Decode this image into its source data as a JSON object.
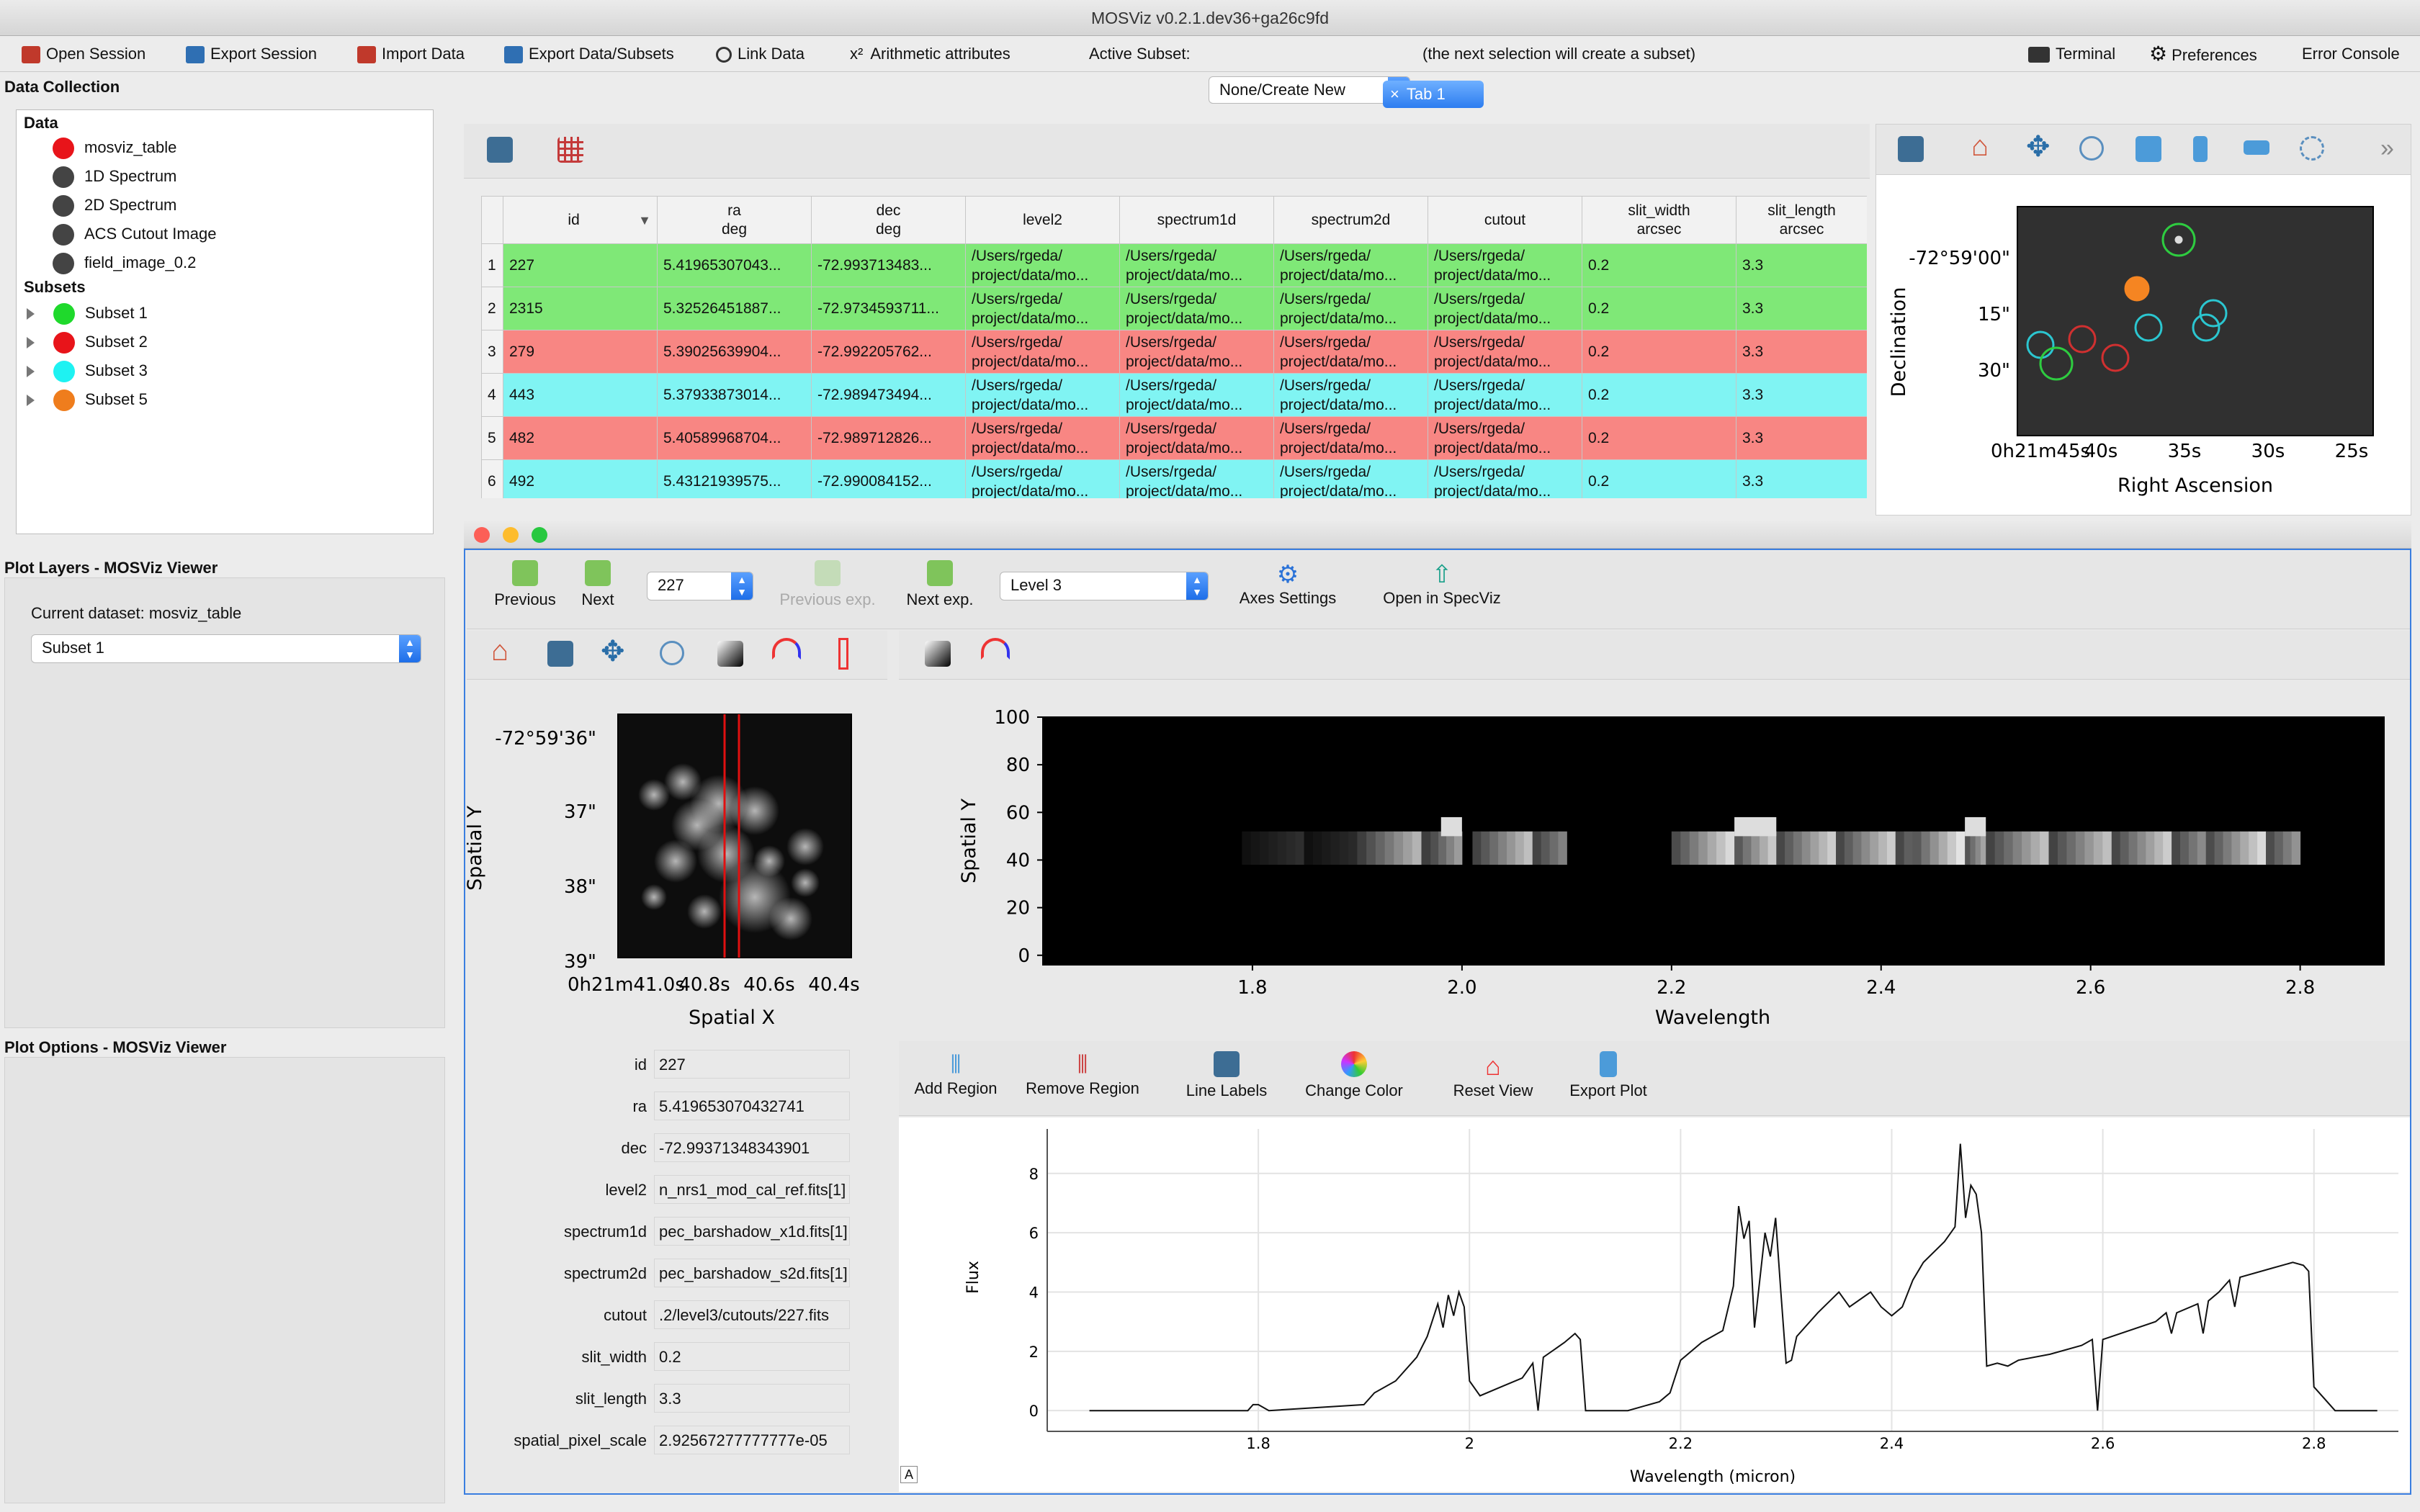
{
  "window_title": "MOSViz v0.2.1.dev36+ga26c9fd",
  "toolbar": {
    "open_session": "Open Session",
    "export_session": "Export Session",
    "import_data": "Import Data",
    "export_data_subsets": "Export Data/Subsets",
    "link_data": "Link Data",
    "arithmetic": "Arithmetic attributes",
    "arithmetic_sym": "x²",
    "active_subset_label": "Active Subset:",
    "active_subset_value": "None/Create New",
    "active_subset_hint": "(the next selection will create a subset)",
    "terminal": "Terminal",
    "preferences": "Preferences",
    "error_console": "Error Console",
    "colors": {
      "red_icon": "#c0392b",
      "blue_icon": "#2f6fb3"
    }
  },
  "data_collection": {
    "title": "Data Collection",
    "data_header": "Data",
    "data": [
      {
        "label": "mosviz_table",
        "color": "#e8141a"
      },
      {
        "label": "1D Spectrum",
        "color": "#444444"
      },
      {
        "label": "2D Spectrum",
        "color": "#444444"
      },
      {
        "label": "ACS Cutout Image",
        "color": "#444444"
      },
      {
        "label": "field_image_0.2",
        "color": "#444444"
      }
    ],
    "subsets_header": "Subsets",
    "subsets": [
      {
        "label": "Subset 1",
        "color": "#1fd92c"
      },
      {
        "label": "Subset 2",
        "color": "#e8141a"
      },
      {
        "label": "Subset 3",
        "color": "#1ef2f2"
      },
      {
        "label": "Subset 5",
        "color": "#ef7d1d"
      }
    ]
  },
  "plot_layers": {
    "title": "Plot Layers - MOSViz Viewer",
    "current_dataset": "Current dataset: mosviz_table",
    "subset_select": "Subset 1"
  },
  "plot_options": {
    "title": "Plot Options - MOSViz Viewer"
  },
  "tab": {
    "label": "Tab 1",
    "close": "×"
  },
  "table": {
    "columns": [
      {
        "l1": "",
        "l2": ""
      },
      {
        "l1": "id",
        "l2": ""
      },
      {
        "l1": "ra",
        "l2": "deg"
      },
      {
        "l1": "dec",
        "l2": "deg"
      },
      {
        "l1": "level2",
        "l2": ""
      },
      {
        "l1": "spectrum1d",
        "l2": ""
      },
      {
        "l1": "spectrum2d",
        "l2": ""
      },
      {
        "l1": "cutout",
        "l2": ""
      },
      {
        "l1": "slit_width",
        "l2": "arcsec"
      },
      {
        "l1": "slit_length",
        "l2": "arcsec"
      }
    ],
    "sort_indicator": "▼",
    "path_l1": "/Users/rgeda/",
    "path_l2": "project/data/mo...",
    "rows": [
      {
        "n": "1",
        "id": "227",
        "ra": "5.41965307043...",
        "dec": "-72.993713483...",
        "w": "0.2",
        "len": "3.3",
        "cls": "rowg"
      },
      {
        "n": "2",
        "id": "2315",
        "ra": "5.32526451887...",
        "dec": "-72.9734593711...",
        "w": "0.2",
        "len": "3.3",
        "cls": "rowg"
      },
      {
        "n": "3",
        "id": "279",
        "ra": "5.39025639904...",
        "dec": "-72.992205762...",
        "w": "0.2",
        "len": "3.3",
        "cls": "rowr"
      },
      {
        "n": "4",
        "id": "443",
        "ra": "5.37933873014...",
        "dec": "-72.989473494...",
        "w": "0.2",
        "len": "3.3",
        "cls": "rowc"
      },
      {
        "n": "5",
        "id": "482",
        "ra": "5.40589968704...",
        "dec": "-72.989712826...",
        "w": "0.2",
        "len": "3.3",
        "cls": "rowr"
      },
      {
        "n": "6",
        "id": "492",
        "ra": "5.43121939575...",
        "dec": "-72.990084152...",
        "w": "0.2",
        "len": "3.3",
        "cls": "rowc"
      }
    ]
  },
  "sky_plot": {
    "xlabel": "Right Ascension",
    "ylabel": "Declination",
    "yticks": [
      "-72°59'00\"",
      "15\"",
      "30\""
    ],
    "xticks": [
      "0h21m45s",
      "40s",
      "35s",
      "30s",
      "25s"
    ],
    "more": "»"
  },
  "mosviz": {
    "previous": "Previous",
    "next": "Next",
    "object_select": "227",
    "previous_exp": "Previous exp.",
    "next_exp": "Next exp.",
    "level_select": "Level 3",
    "axes_settings": "Axes Settings",
    "open_specviz": "Open in SpecViz"
  },
  "cutout": {
    "xlabel": "Spatial X",
    "ylabel": "Spatial Y",
    "yticks": [
      "-72°59'36\"",
      "37\"",
      "38\"",
      "39\""
    ],
    "xticks": [
      "0h21m41.0s",
      "40.8s",
      "40.6s",
      "40.4s"
    ]
  },
  "spec2d": {
    "xlabel": "Wavelength",
    "ylabel": "Spatial Y",
    "yticks": [
      "100",
      "80",
      "60",
      "40",
      "20",
      "0"
    ],
    "xticks": [
      "1.8",
      "2.0",
      "2.2",
      "2.4",
      "2.6",
      "2.8"
    ]
  },
  "info": {
    "fields": [
      {
        "k": "id",
        "v": "227"
      },
      {
        "k": "ra",
        "v": "5.419653070432741"
      },
      {
        "k": "dec",
        "v": "-72.99371348343901"
      },
      {
        "k": "level2",
        "v": "n_nrs1_mod_cal_ref.fits[1]"
      },
      {
        "k": "spectrum1d",
        "v": "pec_barshadow_x1d.fits[1]"
      },
      {
        "k": "spectrum2d",
        "v": "pec_barshadow_s2d.fits[1]"
      },
      {
        "k": "cutout",
        "v": ".2/level3/cutouts/227.fits"
      },
      {
        "k": "slit_width",
        "v": "0.2"
      },
      {
        "k": "slit_length",
        "v": "3.3"
      },
      {
        "k": "spatial_pixel_scale",
        "v": "2.92567277777777e-05"
      }
    ]
  },
  "spec1d_toolbar": {
    "add_region": "Add Region",
    "remove_region": "Remove Region",
    "line_labels": "Line Labels",
    "change_color": "Change Color",
    "reset_view": "Reset View",
    "export_plot": "Export Plot"
  },
  "chart_data": {
    "type": "line",
    "xlabel": "Wavelength (micron)",
    "ylabel": "Flux",
    "xlim": [
      1.6,
      2.88
    ],
    "ylim": [
      -0.7,
      9.5
    ],
    "xticks": [
      "1.8",
      "2",
      "2.2",
      "2.4",
      "2.6",
      "2.8"
    ],
    "yticks": [
      "0",
      "2",
      "4",
      "6",
      "8"
    ],
    "grid": true,
    "series": [
      {
        "x": [
          1.64,
          1.79,
          1.795,
          1.8,
          1.81,
          1.9,
          1.91,
          1.93,
          1.95,
          1.96,
          1.97,
          1.975,
          1.98,
          1.985,
          1.99,
          1.995,
          2.0,
          2.01,
          2.03,
          2.05,
          2.06,
          2.065,
          2.07,
          2.09,
          2.1,
          2.105,
          2.11,
          2.15,
          2.18,
          2.19,
          2.2,
          2.22,
          2.24,
          2.25,
          2.255,
          2.26,
          2.265,
          2.27,
          2.28,
          2.285,
          2.29,
          2.295,
          2.3,
          2.305,
          2.31,
          2.33,
          2.35,
          2.36,
          2.38,
          2.39,
          2.4,
          2.41,
          2.42,
          2.43,
          2.45,
          2.46,
          2.465,
          2.47,
          2.475,
          2.48,
          2.485,
          2.49,
          2.5,
          2.51,
          2.52,
          2.55,
          2.58,
          2.59,
          2.595,
          2.6,
          2.65,
          2.66,
          2.665,
          2.67,
          2.69,
          2.695,
          2.7,
          2.71,
          2.72,
          2.725,
          2.73,
          2.76,
          2.78,
          2.79,
          2.795,
          2.8,
          2.82,
          2.86
        ],
        "y": [
          0.0,
          0.0,
          0.2,
          0.2,
          0.0,
          0.2,
          0.6,
          1.0,
          1.8,
          2.5,
          3.6,
          2.8,
          3.9,
          3.2,
          4.0,
          3.5,
          1.0,
          0.5,
          0.8,
          1.1,
          1.6,
          0.0,
          1.8,
          2.3,
          2.6,
          2.4,
          0.0,
          0.0,
          0.3,
          0.6,
          1.7,
          2.3,
          2.7,
          4.2,
          6.9,
          5.8,
          6.4,
          2.8,
          6.0,
          5.2,
          6.5,
          4.0,
          1.6,
          1.7,
          2.5,
          3.3,
          4.0,
          3.5,
          4.0,
          3.5,
          3.2,
          3.5,
          4.4,
          5.0,
          5.7,
          6.2,
          9.0,
          6.5,
          7.6,
          7.3,
          6.0,
          1.5,
          1.6,
          1.5,
          1.7,
          1.9,
          2.2,
          2.4,
          0.0,
          2.4,
          3.0,
          3.3,
          2.6,
          3.3,
          3.6,
          2.6,
          3.7,
          4.0,
          4.4,
          3.5,
          4.5,
          4.8,
          5.0,
          4.9,
          4.7,
          0.8,
          0.0,
          0.0
        ]
      }
    ]
  }
}
